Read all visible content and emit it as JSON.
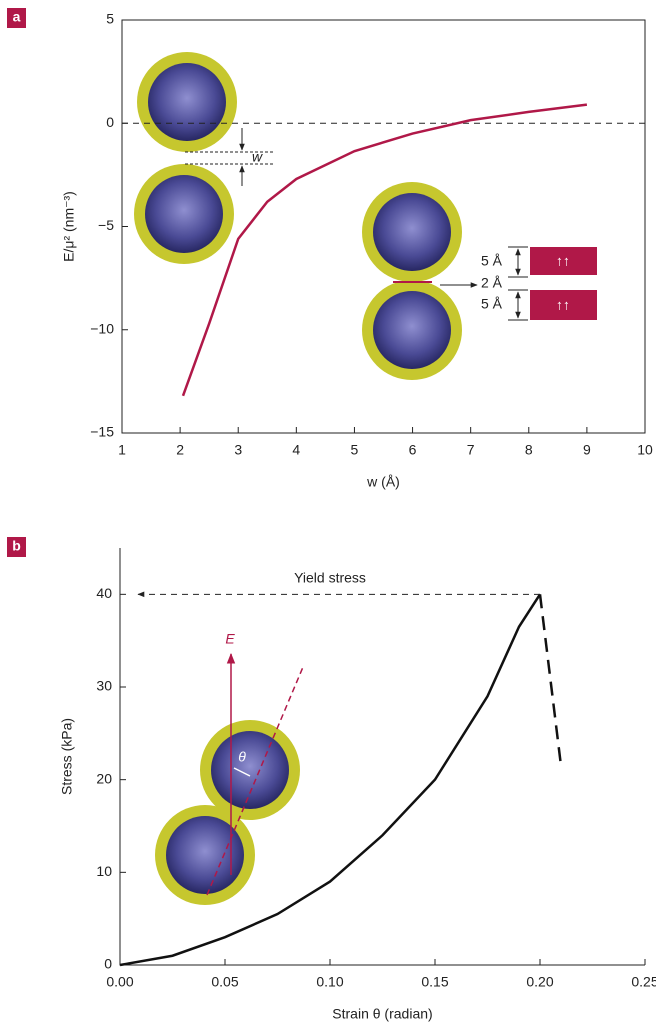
{
  "chart_data": [
    {
      "type": "line",
      "panel": "a",
      "xlabel": "w (Å)",
      "ylabel": "E/μ² (nm⁻³)",
      "xlim": [
        1,
        10
      ],
      "xticks": [
        1,
        2,
        3,
        4,
        5,
        6,
        7,
        8,
        9,
        10
      ],
      "ylim": [
        -15,
        5
      ],
      "yticks": [
        {
          "value": -15,
          "label": "−15"
        },
        {
          "value": -10,
          "label": "−10"
        },
        {
          "value": -5,
          "label": "−5"
        },
        0,
        5
      ],
      "reference_line": 0,
      "series": [
        {
          "color": "#b01848",
          "dashed": false,
          "x": [
            2.05,
            2.5,
            3,
            3.5,
            4,
            5,
            6,
            7,
            8,
            9
          ],
          "values": [
            -13.2,
            -9.7,
            -5.6,
            -3.8,
            -2.7,
            -1.35,
            -0.5,
            0.15,
            0.55,
            0.9
          ]
        }
      ],
      "annotations": [
        "w",
        "5 Å",
        "2 Å",
        "5 Å",
        "↑↑",
        "↑↑"
      ]
    },
    {
      "type": "line",
      "panel": "b",
      "xlabel": "Strain θ (radian)",
      "ylabel": "Stress (kPa)",
      "xlim": [
        0,
        0.25
      ],
      "xticks": [
        {
          "value": 0,
          "label": "0.00"
        },
        0.05,
        {
          "value": 0.1,
          "label": "0.10"
        },
        0.15,
        {
          "value": 0.2,
          "label": "0.20"
        },
        0.25
      ],
      "ylim": [
        0,
        45
      ],
      "yticks": [
        0,
        10,
        20,
        30,
        40
      ],
      "series": [
        {
          "color": "#111111",
          "dashed": false,
          "x": [
            0,
            0.025,
            0.05,
            0.075,
            0.1,
            0.125,
            0.15,
            0.175,
            0.19,
            0.2
          ],
          "values": [
            0,
            1,
            3,
            5.5,
            9,
            14,
            20,
            29,
            36.5,
            40
          ]
        },
        {
          "color": "#111111",
          "dashed": true,
          "x": [
            0.2,
            0.21
          ],
          "values": [
            40,
            21.5
          ]
        }
      ],
      "annotations": [
        "Yield stress",
        "E",
        "θ"
      ]
    }
  ]
}
